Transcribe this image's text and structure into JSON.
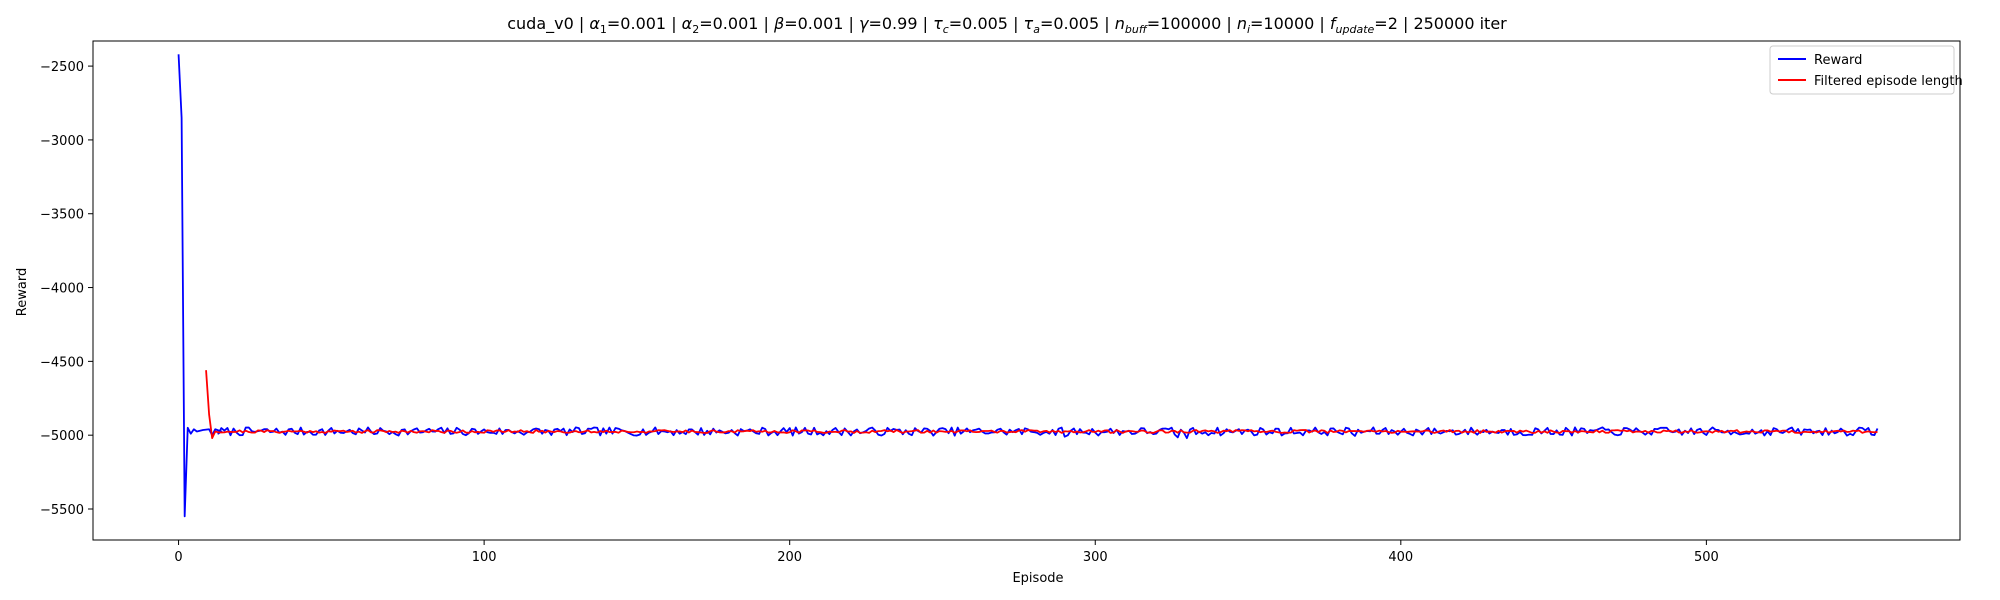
{
  "chart_data": {
    "type": "line",
    "title_parts": [
      {
        "t": "cuda_v0 | "
      },
      {
        "t": "α",
        "i": true
      },
      {
        "t": "1",
        "sub": true
      },
      {
        "t": "=0.001 | "
      },
      {
        "t": "α",
        "i": true
      },
      {
        "t": "2",
        "sub": true
      },
      {
        "t": "=0.001 | "
      },
      {
        "t": "β",
        "i": true
      },
      {
        "t": "=0.001 | "
      },
      {
        "t": "γ",
        "i": true
      },
      {
        "t": "=0.99 | "
      },
      {
        "t": "τ",
        "i": true
      },
      {
        "t": "c",
        "sub": true,
        "i": true
      },
      {
        "t": "=0.005 | "
      },
      {
        "t": "τ",
        "i": true
      },
      {
        "t": "a",
        "sub": true,
        "i": true
      },
      {
        "t": "=0.005 | "
      },
      {
        "t": "n",
        "i": true
      },
      {
        "t": "buff",
        "sub": true,
        "i": true
      },
      {
        "t": "=100000 | "
      },
      {
        "t": "n",
        "i": true
      },
      {
        "t": "i",
        "sub": true,
        "i": true
      },
      {
        "t": "=10000 | "
      },
      {
        "t": "f",
        "i": true
      },
      {
        "t": "update",
        "sub": true,
        "i": true
      },
      {
        "t": "=2 | 250000 iter"
      }
    ],
    "xlabel": "Episode",
    "ylabel": "Reward",
    "xlim": [
      -28,
      583
    ],
    "ylim": [
      -5710,
      -2330
    ],
    "xticks": [
      0,
      100,
      200,
      300,
      400,
      500
    ],
    "xtick_labels": [
      "0",
      "100",
      "200",
      "300",
      "400",
      "500"
    ],
    "yticks": [
      -2500,
      -3000,
      -3500,
      -4000,
      -4500,
      -5000,
      -5500
    ],
    "ytick_labels": [
      "−2500",
      "−3000",
      "−3500",
      "−4000",
      "−4500",
      "−5000",
      "−5500"
    ],
    "legend_position": "top-right",
    "series": [
      {
        "name": "Reward",
        "color": "#0000ff",
        "points": [
          [
            0,
            -2420
          ],
          [
            1,
            -2850
          ],
          [
            2,
            -5550
          ],
          [
            3,
            -4950
          ],
          [
            4,
            -4990
          ],
          [
            5,
            -4960
          ],
          [
            6,
            -4975
          ],
          [
            8,
            -4965
          ],
          [
            10,
            -4960
          ],
          [
            11,
            -5000
          ],
          [
            12,
            -4960
          ],
          [
            14,
            -4975
          ],
          [
            556,
            -4975
          ]
        ],
        "noise": {
          "from": 12,
          "to": 556,
          "base": -4975,
          "amp": 28,
          "seed": 7
        }
      },
      {
        "name": "Filtered episode length",
        "color": "#ff0000",
        "points": [
          [
            9,
            -4560
          ],
          [
            10,
            -4860
          ],
          [
            11,
            -5020
          ],
          [
            12,
            -4975
          ],
          [
            556,
            -4975
          ]
        ],
        "noise": {
          "from": 12,
          "to": 556,
          "base": -4975,
          "amp": 10,
          "seed": 21
        }
      }
    ],
    "annotations": [
      {
        "x": 327,
        "y": -5015,
        "series": 0
      },
      {
        "x": 330,
        "y": -5020,
        "series": 0
      },
      {
        "x": 290,
        "y": -5010,
        "series": 0
      },
      {
        "x": 385,
        "y": -5005,
        "series": 0
      }
    ]
  }
}
